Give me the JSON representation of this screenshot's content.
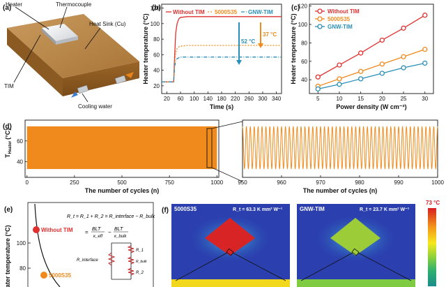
{
  "panels": {
    "a": {
      "label": "(a)",
      "parts": [
        "Heater",
        "Thermocouple",
        "Heat Sink (Cu)",
        "TIM",
        "Cooling water"
      ]
    },
    "b": {
      "label": "(b)",
      "annot_tim": "37 °C",
      "annot_gnw": "52 °C"
    },
    "c": {
      "label": "(c)"
    },
    "d": {
      "label": "(d)",
      "ylabel": "T",
      "ylabel_sub": "Heater",
      "ylabel_unit": "(°C)"
    },
    "e": {
      "label": "(e)",
      "ylabel": "ater temperature (°C)",
      "yticks": [
        "100",
        "80"
      ],
      "points": [
        "Without TIM",
        "5000S35"
      ],
      "eq1": "R_t = R_1 + R_2 = R_interface − R_bulk",
      "eq2_lhs": "=",
      "eq2_n1": "BLT",
      "eq2_d1": "κ_eff",
      "eq2_n2": "BLT",
      "eq2_d2": "κ_bulk",
      "circuit": [
        "R_interface",
        "R_1",
        "R_bulk",
        "R_2"
      ]
    },
    "f": {
      "label": "(f)",
      "left_name": "5000S35",
      "left_r": "R_t = 63.3 K mm² W⁻¹",
      "right_name": "GNW-TIM",
      "right_r": "R_t = 23.7 K mm² W⁻¹",
      "scale_max": "73 °C"
    }
  },
  "chart_data": [
    {
      "id": "b",
      "type": "line",
      "xlabel": "Time (s)",
      "ylabel": "Heater temperature (°C)",
      "xlim": [
        5,
        355
      ],
      "ylim": [
        10,
        125
      ],
      "xticks": [
        20,
        60,
        100,
        140,
        180,
        220,
        260,
        300,
        340
      ],
      "yticks": [
        20,
        40,
        60,
        80,
        100,
        120
      ],
      "legend": "top",
      "series": [
        {
          "name": "Without TIM",
          "color": "#e0312f",
          "dash": "0",
          "x": [
            5,
            40,
            43,
            46,
            50,
            55,
            60,
            80,
            120,
            200,
            300,
            355
          ],
          "y": [
            25,
            25,
            60,
            88,
            100,
            106,
            108,
            109,
            109,
            109,
            109,
            109
          ]
        },
        {
          "name": "5000S35",
          "color": "#f08a1c",
          "dash": "2,2",
          "x": [
            5,
            40,
            43,
            46,
            50,
            55,
            60,
            80,
            120,
            200,
            300,
            355
          ],
          "y": [
            25,
            25,
            50,
            63,
            68,
            70,
            71,
            72,
            72,
            72,
            72,
            72
          ]
        },
        {
          "name": "GNW-TIM",
          "color": "#2a8fb8",
          "dash": "5,2,1,2",
          "x": [
            5,
            40,
            43,
            46,
            50,
            55,
            60,
            80,
            120,
            200,
            300,
            355
          ],
          "y": [
            25,
            25,
            45,
            52,
            55,
            56,
            57,
            57,
            57,
            57,
            57,
            57
          ]
        }
      ]
    },
    {
      "id": "c",
      "type": "line",
      "xlabel": "Power density (W cm⁻²)",
      "ylabel": "Heater temperature (°C)",
      "xlim": [
        3,
        32
      ],
      "ylim": [
        25,
        122
      ],
      "xticks": [
        5,
        10,
        15,
        20,
        25,
        30
      ],
      "yticks": [
        40,
        60,
        80,
        100,
        120
      ],
      "legend": "top-left",
      "series": [
        {
          "name": "Without TIM",
          "color": "#e0312f",
          "x": [
            5,
            10,
            15,
            20,
            25,
            30
          ],
          "y": [
            43,
            56,
            69,
            83,
            96,
            110
          ]
        },
        {
          "name": "5000S35",
          "color": "#f08a1c",
          "x": [
            5,
            10,
            15,
            20,
            25,
            30
          ],
          "y": [
            33,
            41,
            49,
            57,
            65,
            73
          ]
        },
        {
          "name": "GNW-TIM",
          "color": "#2a8fb8",
          "x": [
            5,
            10,
            15,
            20,
            25,
            30
          ],
          "y": [
            30,
            35,
            41,
            47,
            53,
            58
          ]
        }
      ]
    },
    {
      "id": "d_left",
      "type": "area",
      "xlabel": "The number of cycles (n)",
      "xlim": [
        -10,
        1010
      ],
      "ylim": [
        25,
        80
      ],
      "xticks": [
        0,
        250,
        500,
        750,
        1000
      ],
      "yticks": [
        40,
        60
      ],
      "band": {
        "x0": 0,
        "x1": 1000,
        "low": 33,
        "high": 74,
        "color": "#f08a1c"
      }
    },
    {
      "id": "d_right",
      "type": "line",
      "xlabel": "The number of cycles (n)",
      "xlim": [
        950,
        1000
      ],
      "ylim": [
        25,
        80
      ],
      "xticks": [
        950,
        960,
        970,
        980,
        990,
        1000
      ],
      "cycles": 50,
      "low": 33,
      "high": 74,
      "color": "#f08a1c"
    }
  ]
}
